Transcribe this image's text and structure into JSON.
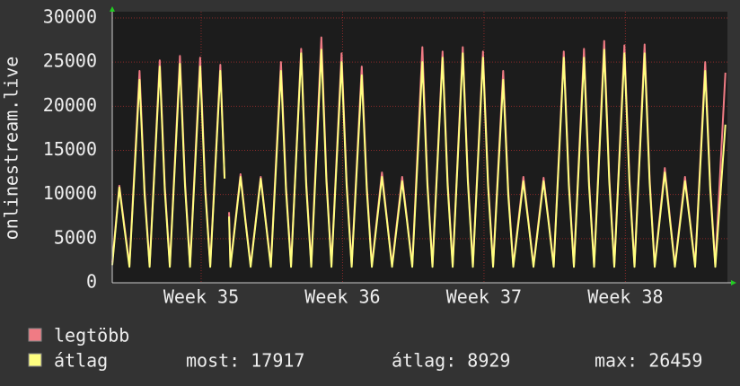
{
  "chart_data": {
    "type": "line",
    "y_label": "onlinestream.live",
    "x": [
      0,
      0.35,
      0.6,
      0.85,
      1.35,
      1.6,
      1.85,
      2.35,
      2.6,
      2.85,
      3.35,
      3.6,
      3.85,
      4.35,
      4.6,
      4.85,
      5.35,
      5.56,
      5.7,
      5.78,
      5.85,
      6.35,
      6.6,
      6.85,
      7.35,
      7.6,
      7.85,
      8.35,
      8.6,
      8.85,
      9.35,
      9.6,
      9.85,
      10.35,
      10.6,
      10.85,
      11.35,
      11.6,
      11.85,
      12.35,
      12.6,
      12.85,
      13.35,
      13.6,
      13.85,
      14.35,
      14.6,
      14.85,
      15.35,
      15.6,
      15.85,
      16.35,
      16.6,
      16.85,
      17.35,
      17.6,
      17.85,
      18.35,
      18.6,
      18.85,
      19.35,
      19.6,
      19.85,
      20.35,
      20.6,
      20.85,
      21.35,
      21.6,
      21.85,
      22.35,
      22.6,
      22.85,
      23.35,
      23.6,
      23.85,
      24.35,
      24.6,
      24.85,
      25.35,
      25.6,
      25.85,
      26.35,
      26.6,
      26.85,
      27.35,
      27.6,
      27.85,
      28.35,
      28.6,
      28.85,
      29.35,
      29.6,
      29.85,
      30.35
    ],
    "series": [
      {
        "name": "legtöbb",
        "color": "#f07b84",
        "values": [
          2300,
          11000,
          6500,
          2000,
          24000,
          10500,
          2000,
          25200,
          11000,
          2000,
          25700,
          11500,
          2000,
          25500,
          11000,
          2000,
          24700,
          11800,
          null,
          8000,
          2000,
          12300,
          7000,
          2000,
          12000,
          7000,
          2000,
          25000,
          11000,
          2000,
          26500,
          11500,
          2000,
          27800,
          12000,
          2000,
          26000,
          11500,
          2000,
          24500,
          11000,
          2000,
          12500,
          7200,
          2000,
          12000,
          7000,
          2000,
          26700,
          11500,
          2000,
          26200,
          11500,
          2000,
          26700,
          12000,
          2000,
          26200,
          11500,
          2000,
          24000,
          10500,
          2000,
          12000,
          7000,
          2000,
          11900,
          7000,
          2000,
          26200,
          11500,
          2000,
          26500,
          11500,
          2000,
          27400,
          12000,
          2000,
          26900,
          11800,
          2000,
          27000,
          11800,
          2000,
          13000,
          7500,
          2000,
          12000,
          7000,
          2000,
          25000,
          11000,
          2000,
          23800
        ]
      },
      {
        "name": "átlag",
        "color": "#ffff80",
        "values": [
          2000,
          10800,
          6200,
          1800,
          23000,
          10000,
          1800,
          24500,
          10500,
          1800,
          24800,
          11000,
          1800,
          24500,
          10500,
          1800,
          24000,
          11800,
          null,
          7500,
          1800,
          12000,
          6800,
          1800,
          11800,
          6800,
          1800,
          24000,
          10500,
          1800,
          26000,
          11000,
          1800,
          26400,
          11500,
          1800,
          25000,
          11000,
          1800,
          23500,
          10500,
          1800,
          12000,
          7000,
          1800,
          11500,
          6800,
          1800,
          25000,
          11000,
          1800,
          25500,
          11000,
          1800,
          26000,
          11500,
          1800,
          25500,
          11000,
          1800,
          23000,
          10000,
          1800,
          11500,
          6800,
          1800,
          11500,
          6800,
          1800,
          25500,
          11000,
          1800,
          25500,
          11000,
          1800,
          26400,
          11500,
          1800,
          26000,
          11300,
          1800,
          26000,
          11300,
          1800,
          12500,
          7200,
          1800,
          11500,
          6800,
          1800,
          24000,
          10500,
          1800,
          17917
        ]
      }
    ],
    "xlim": [
      0,
      30.45
    ],
    "xticks": [
      {
        "value": 4.4,
        "label": "Week 35"
      },
      {
        "value": 11.4,
        "label": "Week 36"
      },
      {
        "value": 18.4,
        "label": "Week 37"
      },
      {
        "value": 25.4,
        "label": "Week 38"
      }
    ],
    "ylim": [
      0,
      30000
    ],
    "yticks": [
      0,
      5000,
      10000,
      15000,
      20000,
      25000,
      30000
    ],
    "grid": true,
    "stats": [
      "most: 17917",
      "átlag: 8929",
      "max: 26459"
    ]
  }
}
